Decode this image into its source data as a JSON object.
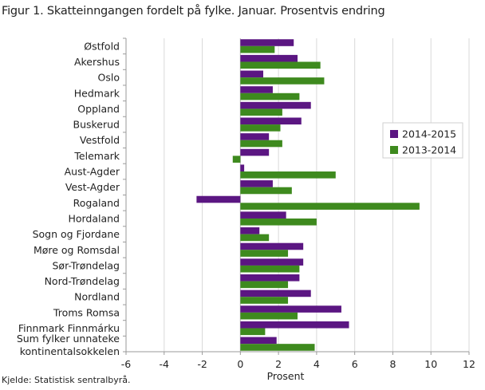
{
  "title": "Figur 1. Skatteinngangen fordelt på fylke. Januar. Prosentvis endring",
  "source": "Kjelde: Statistisk sentralbyrå.",
  "colors": {
    "series_2015": "#5b1682",
    "series_2014": "#3e8a1e",
    "grid": "#d9d9d9",
    "axis": "#9a9a9a"
  },
  "chart_data": {
    "type": "bar",
    "orientation": "horizontal",
    "xlabel": "Prosent",
    "xlim": [
      -6,
      12
    ],
    "xticks": [
      -6,
      -4,
      -2,
      0,
      2,
      4,
      6,
      8,
      10,
      12
    ],
    "grid": true,
    "legend_position": "right",
    "categories": [
      "Østfold",
      "Akershus",
      "Oslo",
      "Hedmark",
      "Oppland",
      "Buskerud",
      "Vestfold",
      "Telemark",
      "Aust-Agder",
      "Vest-Agder",
      "Rogaland",
      "Hordaland",
      "Sogn og Fjordane",
      "Møre og Romsdal",
      "Sør-Trøndelag",
      "Nord-Trøndelag",
      "Nordland",
      "Troms Romsa",
      "Finnmark Finnmárku",
      "Sum fylker unnateke kontinentalsokkelen"
    ],
    "series": [
      {
        "name": "2014-2015",
        "values": [
          2.8,
          3.0,
          1.2,
          1.7,
          3.7,
          3.2,
          1.5,
          1.5,
          0.2,
          1.7,
          -2.3,
          2.4,
          1.0,
          3.3,
          3.3,
          3.1,
          3.7,
          5.3,
          5.7,
          1.9
        ]
      },
      {
        "name": "2013-2014",
        "values": [
          1.8,
          4.2,
          4.4,
          3.1,
          2.2,
          2.1,
          2.2,
          -0.4,
          5.0,
          2.7,
          9.4,
          4.0,
          1.5,
          2.5,
          3.1,
          2.5,
          2.5,
          3.0,
          1.3,
          3.9
        ]
      }
    ]
  }
}
